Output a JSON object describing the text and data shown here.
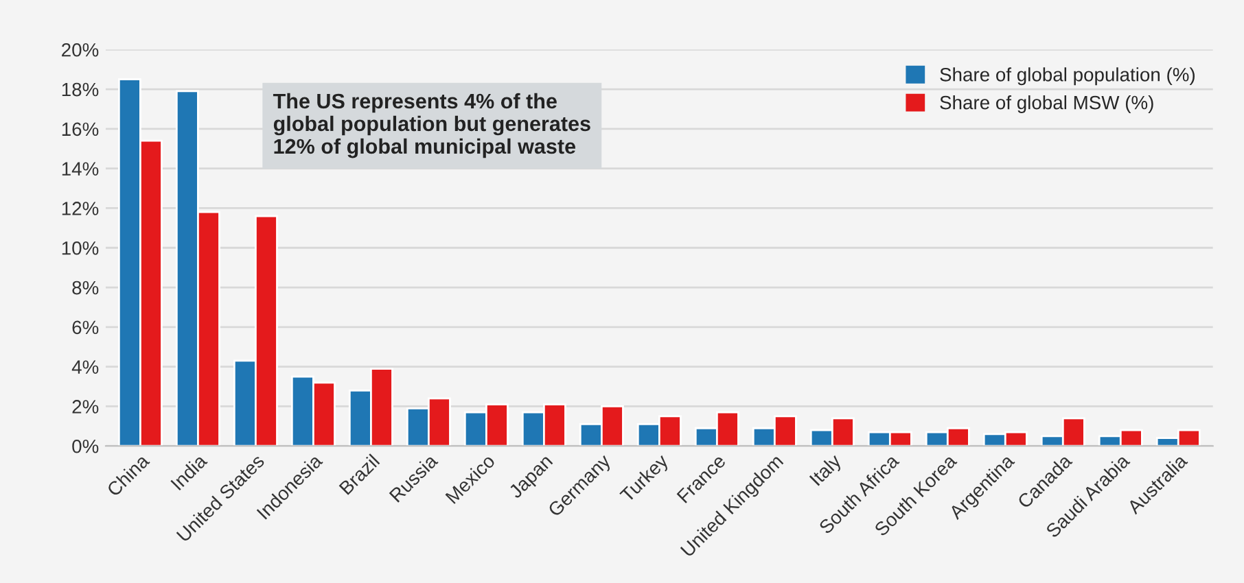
{
  "chart_data": {
    "type": "bar",
    "categories": [
      "China",
      "India",
      "United States",
      "Indonesia",
      "Brazil",
      "Russia",
      "Mexico",
      "Japan",
      "Germany",
      "Turkey",
      "France",
      "United Kingdom",
      "Italy",
      "South Africa",
      "South Korea",
      "Argentina",
      "Canada",
      "Saudi Arabia",
      "Australia"
    ],
    "series": [
      {
        "name": "Share of global population (%)",
        "color": "#1f77b4",
        "values": [
          18.5,
          17.9,
          4.3,
          3.5,
          2.8,
          1.9,
          1.7,
          1.7,
          1.1,
          1.1,
          0.9,
          0.9,
          0.8,
          0.7,
          0.7,
          0.6,
          0.5,
          0.5,
          0.4
        ]
      },
      {
        "name": "Share of global MSW (%)",
        "color": "#e41a1c",
        "values": [
          15.4,
          11.8,
          11.6,
          3.2,
          3.9,
          2.4,
          2.1,
          2.1,
          2.0,
          1.5,
          1.7,
          1.5,
          1.4,
          0.7,
          0.9,
          0.7,
          1.4,
          0.8,
          0.8
        ]
      }
    ],
    "ylim": [
      0,
      20
    ],
    "yticks": [
      {
        "value": 0,
        "label": "0%"
      },
      {
        "value": 2,
        "label": "2%"
      },
      {
        "value": 4,
        "label": "4%"
      },
      {
        "value": 6,
        "label": "6%"
      },
      {
        "value": 8,
        "label": "8%"
      },
      {
        "value": 10,
        "label": "10%"
      },
      {
        "value": 12,
        "label": "12%"
      },
      {
        "value": 14,
        "label": "14%"
      },
      {
        "value": 16,
        "label": "16%"
      },
      {
        "value": 18,
        "label": "18%"
      },
      {
        "value": 20,
        "label": "20%"
      }
    ],
    "annotations": [
      "The US represents 4% of the\nglobal population but generates\n12% of global municipal waste"
    ],
    "grid": "y",
    "legend": "top right"
  }
}
